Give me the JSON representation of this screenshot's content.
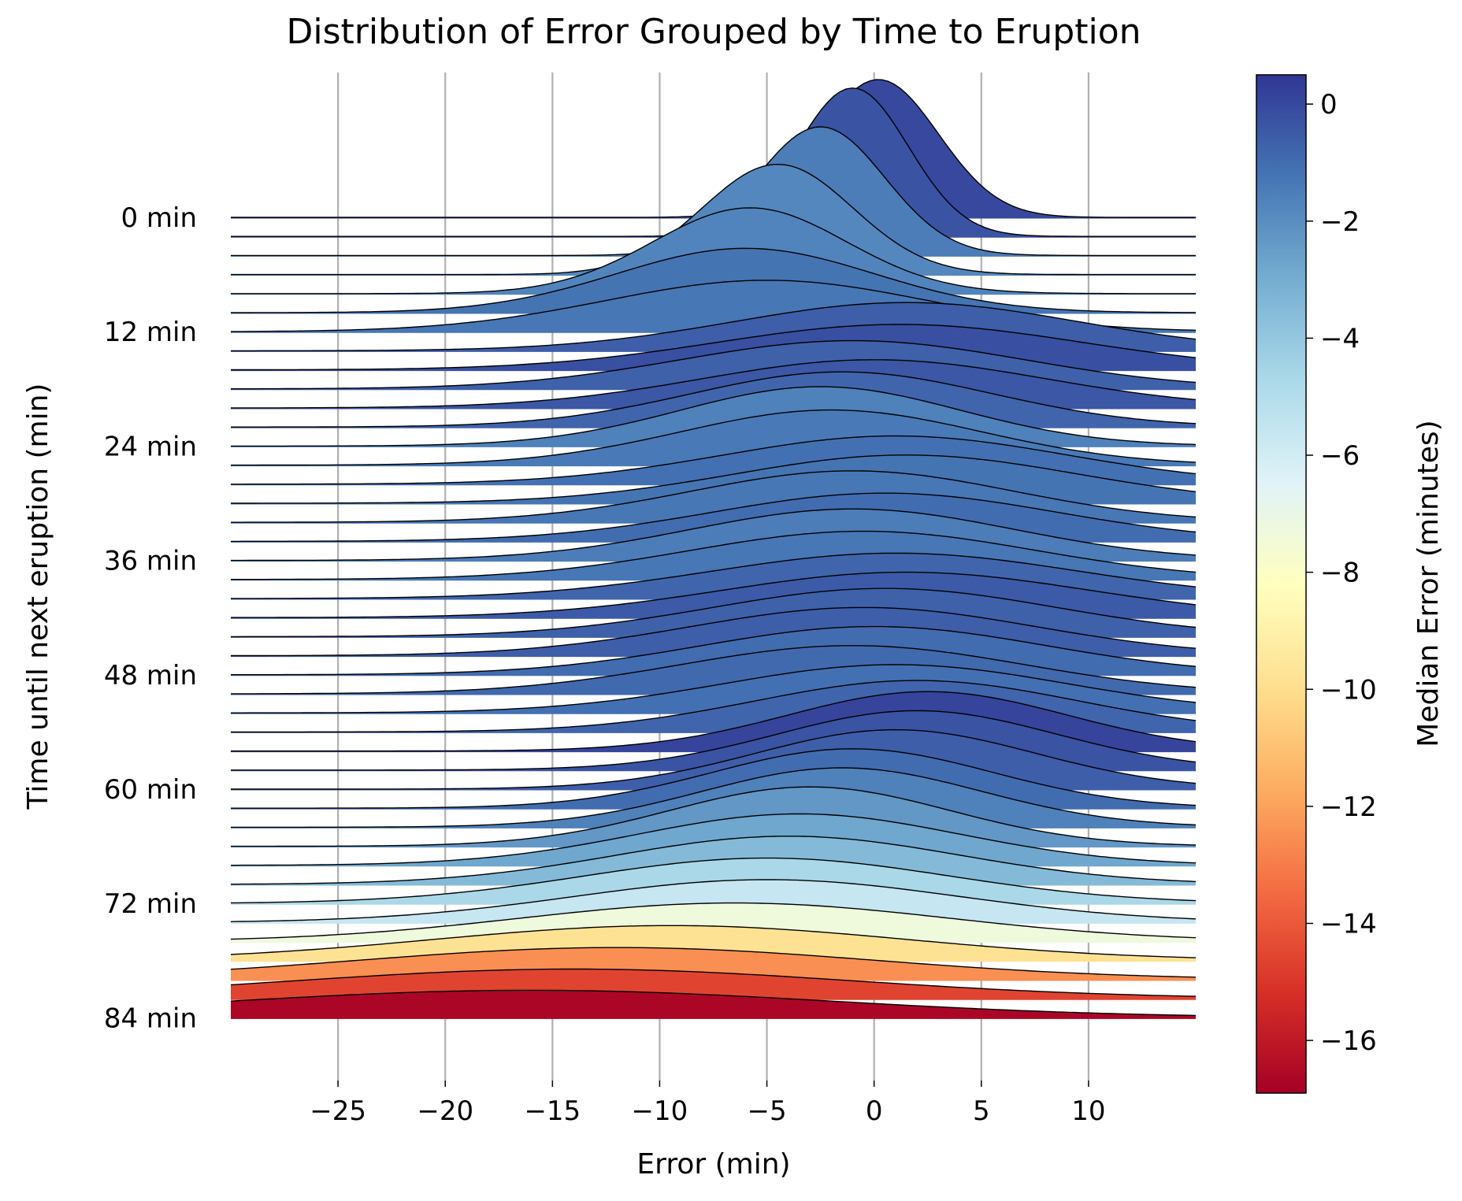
{
  "chart_data": {
    "type": "ridgeline",
    "title": "Distribution of Error Grouped by Time to Eruption",
    "xlabel": "Error (min)",
    "ylabel": "Time until next eruption (min)",
    "xlim": [
      -30,
      15
    ],
    "xticks": [
      -25,
      -20,
      -15,
      -10,
      -5,
      0,
      5,
      10
    ],
    "xtick_labels": [
      "−25",
      "−20",
      "−15",
      "−10",
      "−5",
      "0",
      "5",
      "10"
    ],
    "ytick_labels": [
      "0 min",
      "12 min",
      "24 min",
      "36 min",
      "48 min",
      "60 min",
      "72 min",
      "84 min"
    ],
    "ytick_values": [
      0,
      12,
      24,
      36,
      48,
      60,
      72,
      84
    ],
    "group_step_min": 2,
    "grid": "vertical",
    "colorbar": {
      "label": "Median Error (minutes)",
      "range": [
        -16.9,
        0.5
      ],
      "ticks": [
        0,
        -2,
        -4,
        -6,
        -8,
        -10,
        -12,
        -14,
        -16
      ],
      "tick_labels": [
        "0",
        "−2",
        "−4",
        "−6",
        "−8",
        "−10",
        "−12",
        "−14",
        "−16"
      ],
      "colormap": [
        "#a50026",
        "#d73027",
        "#f46d43",
        "#fdae61",
        "#fee090",
        "#ffffbf",
        "#e0f3f8",
        "#abd9e9",
        "#74add1",
        "#4575b4",
        "#313695"
      ]
    },
    "groups": [
      {
        "t": 0,
        "median": 0.0,
        "peak": 0.2,
        "width": 2.8
      },
      {
        "t": 2,
        "median": -0.3,
        "peak": -1.0,
        "width": 2.6
      },
      {
        "t": 4,
        "median": -1.5,
        "peak": -2.5,
        "width": 3.0
      },
      {
        "t": 6,
        "median": -1.8,
        "peak": -4.5,
        "width": 3.5
      },
      {
        "t": 8,
        "median": -1.7,
        "peak": -5.8,
        "width": 4.5
      },
      {
        "t": 10,
        "median": -1.2,
        "peak": -6.0,
        "width": 6.0
      },
      {
        "t": 12,
        "median": -1.3,
        "peak": -5.0,
        "width": 7.5
      },
      {
        "t": 14,
        "median": -0.6,
        "peak": 1.5,
        "width": 8.0
      },
      {
        "t": 16,
        "median": -0.2,
        "peak": 1.2,
        "width": 8.5
      },
      {
        "t": 18,
        "median": -0.7,
        "peak": -1.0,
        "width": 8.0
      },
      {
        "t": 20,
        "median": -0.4,
        "peak": 0.0,
        "width": 8.0
      },
      {
        "t": 22,
        "median": -0.8,
        "peak": -1.5,
        "width": 7.0
      },
      {
        "t": 24,
        "median": -1.6,
        "peak": -2.5,
        "width": 6.5
      },
      {
        "t": 26,
        "median": -1.4,
        "peak": -2.0,
        "width": 7.0
      },
      {
        "t": 28,
        "median": -1.1,
        "peak": 1.0,
        "width": 8.0
      },
      {
        "t": 30,
        "median": -1.2,
        "peak": 1.5,
        "width": 8.0
      },
      {
        "t": 32,
        "median": -1.3,
        "peak": -1.0,
        "width": 7.5
      },
      {
        "t": 34,
        "median": -1.0,
        "peak": 0.5,
        "width": 8.0
      },
      {
        "t": 36,
        "median": -1.5,
        "peak": -1.0,
        "width": 7.5
      },
      {
        "t": 38,
        "median": -1.3,
        "peak": -0.5,
        "width": 8.0
      },
      {
        "t": 40,
        "median": -0.8,
        "peak": 1.0,
        "width": 8.5
      },
      {
        "t": 42,
        "median": -0.5,
        "peak": 1.5,
        "width": 8.5
      },
      {
        "t": 44,
        "median": -0.7,
        "peak": 0.5,
        "width": 8.0
      },
      {
        "t": 46,
        "median": -0.6,
        "peak": -0.5,
        "width": 8.0
      },
      {
        "t": 48,
        "median": -1.0,
        "peak": 0.0,
        "width": 8.0
      },
      {
        "t": 50,
        "median": -0.9,
        "peak": -1.0,
        "width": 8.0
      },
      {
        "t": 52,
        "median": -1.1,
        "peak": 1.0,
        "width": 8.0
      },
      {
        "t": 54,
        "median": -0.8,
        "peak": 2.0,
        "width": 7.5
      },
      {
        "t": 56,
        "median": 0.1,
        "peak": 2.5,
        "width": 6.5
      },
      {
        "t": 58,
        "median": -0.3,
        "peak": 2.0,
        "width": 6.5
      },
      {
        "t": 60,
        "median": -0.6,
        "peak": 1.0,
        "width": 6.5
      },
      {
        "t": 62,
        "median": -1.0,
        "peak": -1.0,
        "width": 6.5
      },
      {
        "t": 64,
        "median": -1.6,
        "peak": -1.5,
        "width": 6.5
      },
      {
        "t": 66,
        "median": -2.3,
        "peak": -3.0,
        "width": 6.5
      },
      {
        "t": 68,
        "median": -2.8,
        "peak": -3.5,
        "width": 7.5
      },
      {
        "t": 70,
        "median": -3.5,
        "peak": -4.0,
        "width": 8.0
      },
      {
        "t": 72,
        "median": -4.7,
        "peak": -5.0,
        "width": 8.5
      },
      {
        "t": 74,
        "median": -5.6,
        "peak": -5.0,
        "width": 9.0
      },
      {
        "t": 76,
        "median": -7.3,
        "peak": -6.5,
        "width": 10.0
      },
      {
        "t": 78,
        "median": -9.8,
        "peak": -9.5,
        "width": 11.0
      },
      {
        "t": 80,
        "median": -12.5,
        "peak": -12.0,
        "width": 12.0
      },
      {
        "t": 82,
        "median": -14.6,
        "peak": -14.0,
        "width": 13.0
      },
      {
        "t": 84,
        "median": -16.7,
        "peak": -16.0,
        "width": 14.0
      }
    ]
  }
}
